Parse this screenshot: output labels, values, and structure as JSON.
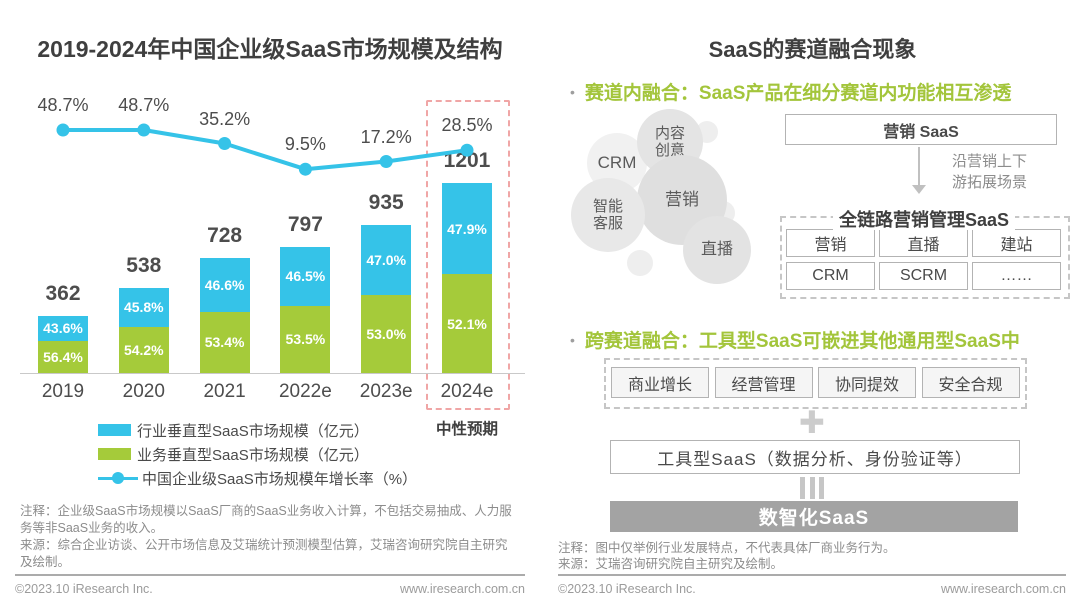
{
  "chart_data": {
    "type": "combo: stacked-bar + line",
    "title": "2019-2024年中国企业级SaaS市场规模及结构",
    "categories": [
      "2019",
      "2020",
      "2021",
      "2022e",
      "2023e",
      "2024e"
    ],
    "totals": [
      362,
      538,
      728,
      797,
      935,
      1201
    ],
    "unit": "亿元",
    "series": [
      {
        "name": "行业垂直型SaaS市场规模（亿元）",
        "role": "bar-top",
        "color": "#35c3e8",
        "share_pct": [
          43.6,
          45.8,
          46.6,
          46.5,
          47.0,
          47.9
        ]
      },
      {
        "name": "业务垂直型SaaS市场规模（亿元）",
        "role": "bar-bottom",
        "color": "#a5cb3a",
        "share_pct": [
          56.4,
          54.2,
          53.4,
          53.5,
          53.0,
          52.1
        ]
      },
      {
        "name": "中国企业级SaaS市场规模年增长率（%）",
        "role": "line",
        "color": "#35c3e8",
        "values": [
          48.7,
          48.7,
          35.2,
          9.5,
          17.2,
          28.5
        ]
      }
    ],
    "highlight": {
      "category": "2024e",
      "label": "中性预期"
    },
    "legend_position": "bottom-left",
    "grid": false
  },
  "left": {
    "title": "2019-2024年中国企业级SaaS市场规模及结构",
    "highlight_label": "中性预期",
    "note_line1": "注释：企业级SaaS市场规模以SaaS厂商的SaaS业务收入计算，不包括交易抽成、人力服务等非SaaS业务的收入。",
    "note_line2": "来源：综合企业访谈、公开市场信息及艾瑞统计预测模型估算，艾瑞咨询研究院自主研究及绘制。"
  },
  "right": {
    "title": "SaaS的赛道融合现象",
    "bullets": [
      {
        "marker": "•",
        "text": "赛道内融合：SaaS产品在细分赛道内功能相互渗透"
      },
      {
        "marker": "•",
        "text": "跨赛道融合：工具型SaaS可嵌进其他通用型SaaS中"
      }
    ],
    "bubbles": [
      {
        "lines": [
          "CRM"
        ]
      },
      {
        "lines": [
          "内容",
          "创意"
        ]
      },
      {
        "lines": [
          "营销"
        ]
      },
      {
        "lines": [
          "智能",
          "客服"
        ]
      },
      {
        "lines": [
          "直播"
        ]
      }
    ],
    "marketing_box": "营销 SaaS",
    "arrow_note": "沿营销上下游拓展场景",
    "full_chain_title": "全链路营销管理SaaS",
    "full_chain_items": [
      "营销",
      "直播",
      "建站",
      "CRM",
      "SCRM",
      "……"
    ],
    "tool_categories": [
      "商业增长",
      "经营管理",
      "协同提效",
      "安全合规"
    ],
    "plus_icon": "✚",
    "tool_box": "工具型SaaS（数据分析、身份验证等）",
    "result_box": "数智化SaaS",
    "note_line1": "注释：图中仅举例行业发展特点，不代表具体厂商业务行为。",
    "note_line2": "来源：艾瑞咨询研究院自主研究及绘制。"
  },
  "footer": {
    "copyright": "©2023.10 iResearch Inc.",
    "website": "www.iresearch.com.cn"
  },
  "colors": {
    "bar_blue": "#35c3e8",
    "bar_green": "#a5cb3a",
    "green_text": "#a3c53b",
    "highlight_dash": "#f0a6a6",
    "dark_text": "#3f3f3f",
    "note_gray": "#8c8c8c",
    "result_box_bg": "#a3a3a3"
  }
}
